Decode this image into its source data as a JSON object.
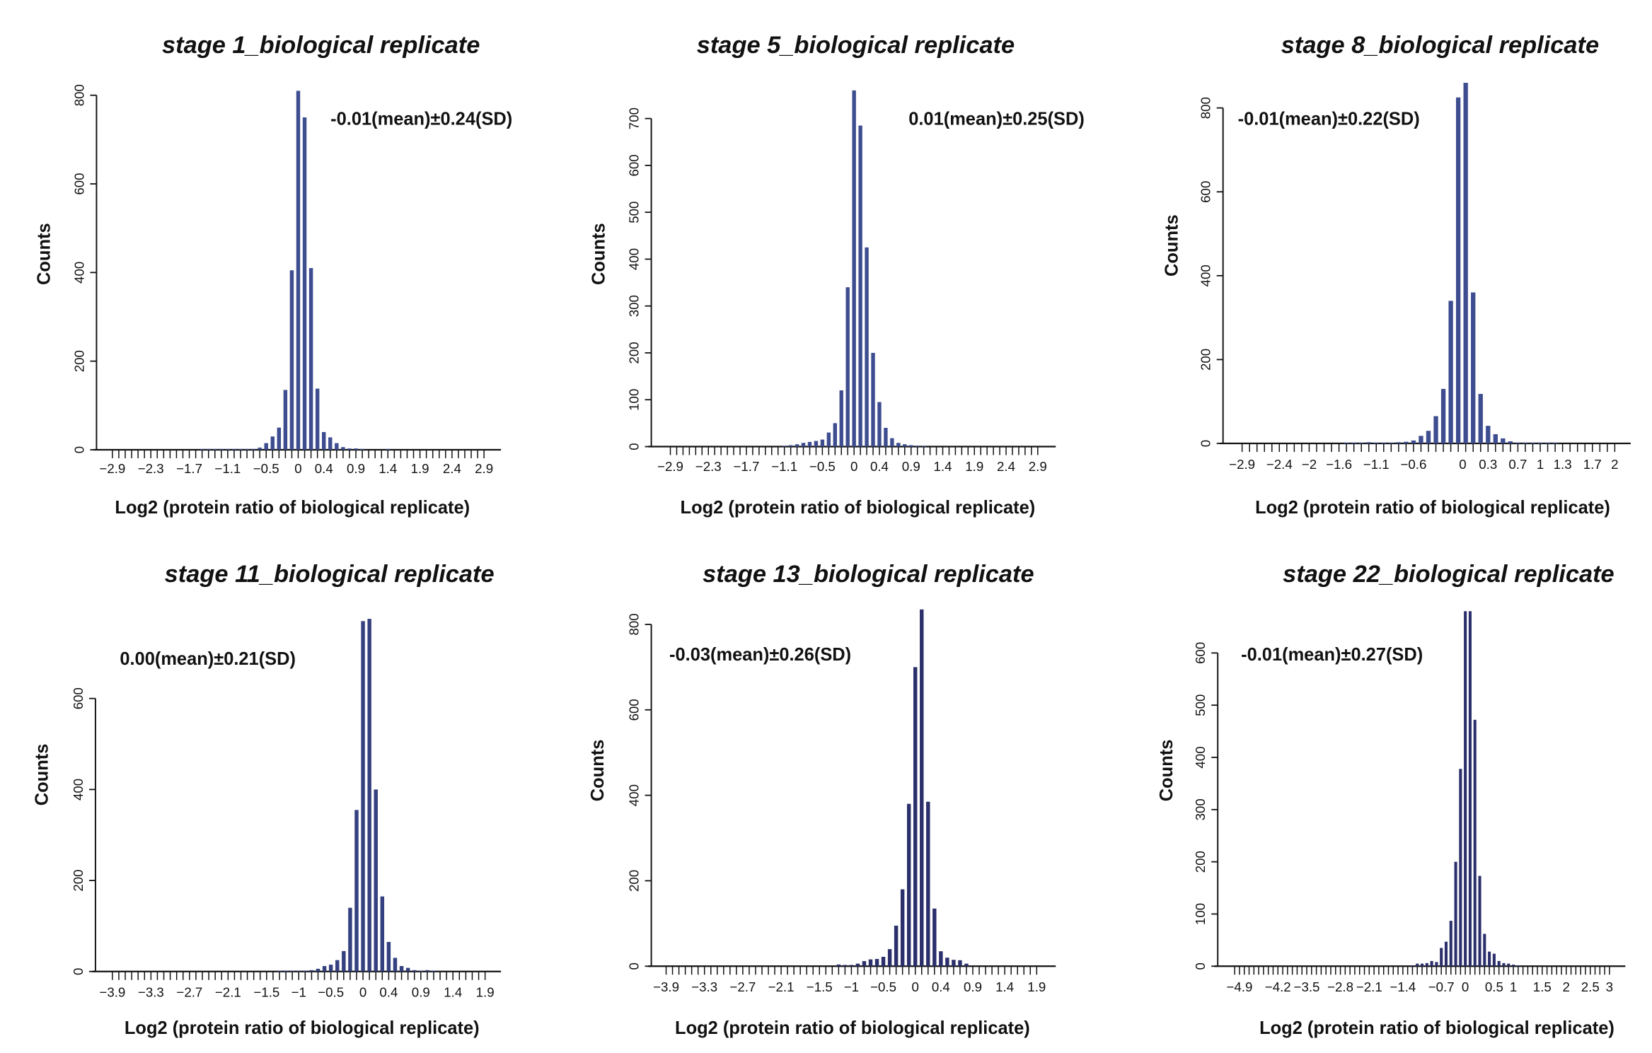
{
  "chart_data": [
    {
      "type": "bar",
      "title": "stage 1_biological replicate",
      "annotation": "-0.01(mean)±0.24(SD)",
      "xlabel": "Log2 (protein ratio of biological replicate)",
      "ylabel": "Counts",
      "yticks": [
        0,
        200,
        400,
        600,
        800
      ],
      "bar_color": "#3d4d8f",
      "x_tick_labels": [
        {
          "bin": 0,
          "label": "−2.9"
        },
        {
          "bin": 6,
          "label": "−2.3"
        },
        {
          "bin": 12,
          "label": "−1.7"
        },
        {
          "bin": 18,
          "label": "−1.1"
        },
        {
          "bin": 24,
          "label": "−0.5"
        },
        {
          "bin": 29,
          "label": "0"
        },
        {
          "bin": 33,
          "label": "0.4"
        },
        {
          "bin": 38,
          "label": "0.9"
        },
        {
          "bin": 43,
          "label": "1.4"
        },
        {
          "bin": 48,
          "label": "1.9"
        },
        {
          "bin": 53,
          "label": "2.4"
        },
        {
          "bin": 58,
          "label": "2.9"
        }
      ],
      "values": [
        0,
        0,
        0,
        0,
        0,
        0,
        0,
        0,
        0,
        0,
        0,
        0,
        0,
        0,
        1,
        1,
        1,
        1,
        1,
        1,
        1,
        1,
        2,
        5,
        15,
        30,
        50,
        135,
        405,
        810,
        750,
        410,
        138,
        40,
        28,
        15,
        6,
        3,
        3,
        1,
        0,
        0,
        0,
        1,
        0,
        0,
        0,
        0,
        0,
        0,
        0,
        0,
        0,
        0,
        0,
        0,
        0,
        0,
        0
      ]
    },
    {
      "type": "bar",
      "title": "stage 5_biological replicate",
      "annotation": "0.01(mean)±0.25(SD)",
      "xlabel": "Log2 (protein ratio of biological replicate)",
      "ylabel": "Counts",
      "yticks": [
        0,
        100,
        200,
        300,
        400,
        500,
        600,
        700
      ],
      "bar_color": "#3d4d8f",
      "x_tick_labels": [
        {
          "bin": 0,
          "label": "−2.9"
        },
        {
          "bin": 6,
          "label": "−2.3"
        },
        {
          "bin": 12,
          "label": "−1.7"
        },
        {
          "bin": 18,
          "label": "−1.1"
        },
        {
          "bin": 24,
          "label": "−0.5"
        },
        {
          "bin": 29,
          "label": "0"
        },
        {
          "bin": 33,
          "label": "0.4"
        },
        {
          "bin": 38,
          "label": "0.9"
        },
        {
          "bin": 43,
          "label": "1.4"
        },
        {
          "bin": 48,
          "label": "1.9"
        },
        {
          "bin": 53,
          "label": "2.4"
        },
        {
          "bin": 58,
          "label": "2.9"
        }
      ],
      "values": [
        0,
        0,
        0,
        0,
        0,
        0,
        0,
        0,
        0,
        0,
        0,
        0,
        0,
        0,
        0,
        0,
        0,
        0,
        1,
        3,
        5,
        8,
        10,
        12,
        15,
        30,
        50,
        120,
        340,
        760,
        685,
        425,
        200,
        95,
        40,
        18,
        8,
        5,
        3,
        2,
        1,
        0,
        0,
        0,
        0,
        0,
        0,
        0,
        0,
        0,
        0,
        0,
        0,
        0,
        0,
        0,
        0,
        0,
        0
      ]
    },
    {
      "type": "bar",
      "title": "stage 8_biological replicate",
      "annotation": "-0.01(mean)±0.22(SD)",
      "xlabel": "Log2 (protein ratio of biological replicate)",
      "ylabel": "Counts",
      "yticks": [
        0,
        200,
        400,
        600,
        800
      ],
      "bar_color": "#3d4d8f",
      "x_tick_labels": [
        {
          "bin": 0,
          "label": "−2.9"
        },
        {
          "bin": 5,
          "label": "−2.4"
        },
        {
          "bin": 9,
          "label": "−2"
        },
        {
          "bin": 13,
          "label": "−1.6"
        },
        {
          "bin": 18,
          "label": "−1.1"
        },
        {
          "bin": 23,
          "label": "−0.6"
        },
        {
          "bin": 29.6,
          "label": "0"
        },
        {
          "bin": 33,
          "label": "0.3"
        },
        {
          "bin": 37,
          "label": "0.7"
        },
        {
          "bin": 40,
          "label": "1"
        },
        {
          "bin": 43,
          "label": "1.3"
        },
        {
          "bin": 47,
          "label": "1.7"
        },
        {
          "bin": 50,
          "label": "2"
        }
      ],
      "values": [
        0,
        0,
        0,
        0,
        0,
        0,
        0,
        0,
        0,
        0,
        0,
        0,
        0,
        0,
        1,
        1,
        1,
        3,
        2,
        2,
        2,
        3,
        4,
        7,
        18,
        30,
        65,
        130,
        340,
        825,
        860,
        360,
        118,
        42,
        22,
        12,
        5,
        2,
        1,
        2,
        2,
        1,
        2,
        0,
        0,
        0,
        0,
        0,
        0,
        0,
        0
      ]
    },
    {
      "type": "bar",
      "title": "stage 11_biological replicate",
      "annotation": "0.00(mean)±0.21(SD)",
      "xlabel": "Log2 (protein ratio of biological replicate)",
      "ylabel": "Counts",
      "yticks": [
        0,
        200,
        400,
        600
      ],
      "bar_color": "#34407f",
      "x_tick_labels": [
        {
          "bin": 0,
          "label": "−3.9"
        },
        {
          "bin": 6,
          "label": "−3.3"
        },
        {
          "bin": 12,
          "label": "−2.7"
        },
        {
          "bin": 18,
          "label": "−2.1"
        },
        {
          "bin": 24,
          "label": "−1.5"
        },
        {
          "bin": 29,
          "label": "−1"
        },
        {
          "bin": 34,
          "label": "−0.5"
        },
        {
          "bin": 39,
          "label": "0"
        },
        {
          "bin": 43,
          "label": "0.4"
        },
        {
          "bin": 48,
          "label": "0.9"
        },
        {
          "bin": 53,
          "label": "1.4"
        },
        {
          "bin": 58,
          "label": "1.9"
        }
      ],
      "values": [
        0,
        0,
        0,
        0,
        0,
        0,
        0,
        0,
        0,
        0,
        0,
        0,
        0,
        0,
        0,
        0,
        0,
        0,
        0,
        0,
        0,
        0,
        0,
        0,
        0,
        0,
        1,
        1,
        1,
        1,
        2,
        3,
        6,
        12,
        15,
        25,
        45,
        140,
        355,
        770,
        775,
        400,
        165,
        65,
        30,
        12,
        8,
        3,
        1,
        3,
        1,
        0,
        0,
        0,
        0,
        0,
        0,
        0,
        0
      ]
    },
    {
      "type": "bar",
      "title": "stage 13_biological replicate",
      "annotation": "-0.03(mean)±0.26(SD)",
      "xlabel": "Log2 (protein ratio of biological replicate)",
      "ylabel": "Counts",
      "yticks": [
        0,
        200,
        400,
        600,
        800
      ],
      "bar_color": "#2b2f6b",
      "x_tick_labels": [
        {
          "bin": 0,
          "label": "−3.9"
        },
        {
          "bin": 6,
          "label": "−3.3"
        },
        {
          "bin": 12,
          "label": "−2.7"
        },
        {
          "bin": 18,
          "label": "−2.1"
        },
        {
          "bin": 24,
          "label": "−1.5"
        },
        {
          "bin": 29,
          "label": "−1"
        },
        {
          "bin": 34,
          "label": "−0.5"
        },
        {
          "bin": 39,
          "label": "0"
        },
        {
          "bin": 43,
          "label": "0.4"
        },
        {
          "bin": 48,
          "label": "0.9"
        },
        {
          "bin": 53,
          "label": "1.4"
        },
        {
          "bin": 58,
          "label": "1.9"
        }
      ],
      "values": [
        0,
        0,
        0,
        0,
        0,
        0,
        0,
        0,
        0,
        0,
        0,
        0,
        0,
        0,
        0,
        0,
        0,
        0,
        0,
        0,
        0,
        0,
        0,
        0,
        0,
        0,
        0,
        4,
        3,
        3,
        6,
        12,
        16,
        17,
        22,
        40,
        95,
        180,
        380,
        700,
        835,
        385,
        135,
        35,
        20,
        15,
        14,
        6,
        0,
        0,
        0,
        0,
        0,
        0,
        0,
        0,
        0,
        0,
        0
      ]
    },
    {
      "type": "bar",
      "title": "stage 22_biological replicate",
      "annotation": "-0.01(mean)±0.27(SD)",
      "xlabel": "Log2 (protein ratio of biological replicate)",
      "ylabel": "Counts",
      "yticks": [
        0,
        100,
        200,
        300,
        400,
        500,
        600
      ],
      "bar_color": "#2b2f6b",
      "x_tick_labels": [
        {
          "bin": 1,
          "label": "−4.9"
        },
        {
          "bin": 9,
          "label": "−4.2"
        },
        {
          "bin": 15,
          "label": "−3.5"
        },
        {
          "bin": 22,
          "label": "−2.8"
        },
        {
          "bin": 28,
          "label": "−2.1"
        },
        {
          "bin": 35,
          "label": "−1.4"
        },
        {
          "bin": 43,
          "label": "−0.7"
        },
        {
          "bin": 48,
          "label": "0"
        },
        {
          "bin": 54,
          "label": "0.5"
        },
        {
          "bin": 58,
          "label": "1"
        },
        {
          "bin": 64,
          "label": "1.5"
        },
        {
          "bin": 69,
          "label": "2"
        },
        {
          "bin": 74,
          "label": "2.5"
        },
        {
          "bin": 78,
          "label": "3"
        }
      ],
      "values": [
        0,
        0,
        0,
        0,
        0,
        0,
        0,
        0,
        0,
        0,
        0,
        0,
        0,
        0,
        0,
        0,
        0,
        0,
        0,
        0,
        0,
        0,
        0,
        0,
        0,
        0,
        0,
        0,
        0,
        0,
        0,
        0,
        0,
        0,
        0,
        0,
        0,
        1,
        5,
        5,
        6,
        10,
        8,
        35,
        47,
        87,
        200,
        378,
        680,
        680,
        472,
        173,
        62,
        28,
        24,
        10,
        6,
        5,
        3,
        1,
        0,
        0,
        0,
        0,
        0,
        0,
        0,
        0,
        0,
        0,
        0,
        0,
        0,
        0,
        0,
        0,
        0,
        0,
        0
      ]
    }
  ]
}
